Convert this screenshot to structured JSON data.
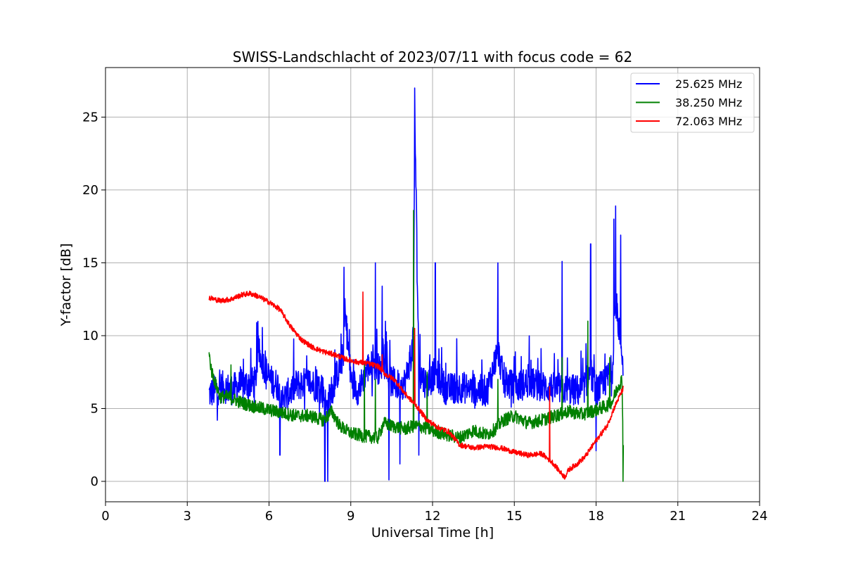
{
  "chart_data": {
    "type": "line",
    "title": "SWISS-Landschlacht of 2023/07/11 with focus code = 62",
    "xlabel": "Universal Time [h]",
    "ylabel": "Y-factor [dB]",
    "xlim": [
      0,
      24
    ],
    "ylim": [
      -1.4,
      28.4
    ],
    "xticks": [
      0,
      3,
      6,
      9,
      12,
      15,
      18,
      21,
      24
    ],
    "yticks": [
      0,
      5,
      10,
      15,
      20,
      25
    ],
    "grid": true,
    "legend_position": "top-right",
    "series": [
      {
        "name": "25.625 MHz",
        "color": "#0000ff",
        "x": [
          3.8,
          4.0,
          4.3,
          4.6,
          5.0,
          5.5,
          5.6,
          6.0,
          6.4,
          6.5,
          7.0,
          7.5,
          8.0,
          8.1,
          8.4,
          8.7,
          8.8,
          9.0,
          9.3,
          9.6,
          9.9,
          10.1,
          10.2,
          10.4,
          10.7,
          11.0,
          11.3,
          11.35,
          11.5,
          11.8,
          12.1,
          12.5,
          13.0,
          13.5,
          14.0,
          14.4,
          14.6,
          15.0,
          15.5,
          16.0,
          16.5,
          17.0,
          17.5,
          17.8,
          18.0,
          18.3,
          18.6,
          18.7,
          18.85,
          19.0
        ],
        "y": [
          6.0,
          6.2,
          6.5,
          6.3,
          6.6,
          6.8,
          9.0,
          7.0,
          6.5,
          5.6,
          6.6,
          6.8,
          6.2,
          5.0,
          6.8,
          8.5,
          11.5,
          7.0,
          6.2,
          7.8,
          8.0,
          7.5,
          9.5,
          7.0,
          6.6,
          6.8,
          9.5,
          25.0,
          7.5,
          6.6,
          7.5,
          6.3,
          6.5,
          6.3,
          6.2,
          9.0,
          7.0,
          6.4,
          6.8,
          6.5,
          6.4,
          6.3,
          6.2,
          7.5,
          6.3,
          6.6,
          7.8,
          12.0,
          10.5,
          8.0
        ],
        "spikes_max": [
          [
            4.1,
            4.2
          ],
          [
            5.55,
            10.9
          ],
          [
            8.75,
            14.7
          ],
          [
            9.9,
            15.0
          ],
          [
            10.15,
            13.4
          ],
          [
            11.35,
            27.0
          ],
          [
            12.1,
            15.0
          ],
          [
            14.4,
            15.0
          ],
          [
            16.75,
            15.1
          ],
          [
            17.8,
            16.3
          ],
          [
            18.65,
            18.0
          ],
          [
            18.72,
            18.9
          ],
          [
            18.9,
            16.9
          ]
        ],
        "spikes_min": [
          [
            4.1,
            4.2
          ],
          [
            6.4,
            1.8
          ],
          [
            8.05,
            0.0
          ],
          [
            8.15,
            0.0
          ],
          [
            10.4,
            0.1
          ],
          [
            10.8,
            1.2
          ],
          [
            11.5,
            1.8
          ],
          [
            18.0,
            2.1
          ]
        ]
      },
      {
        "name": "38.250 MHz",
        "color": "#008000",
        "x": [
          3.8,
          3.9,
          4.2,
          4.5,
          5.0,
          5.5,
          6.0,
          6.5,
          7.0,
          7.5,
          8.0,
          8.3,
          8.6,
          9.0,
          9.5,
          10.0,
          10.2,
          10.5,
          11.0,
          11.3,
          11.5,
          12.0,
          12.5,
          13.0,
          13.5,
          14.0,
          14.3,
          14.6,
          15.0,
          15.5,
          16.0,
          16.5,
          17.0,
          17.5,
          18.0,
          18.4,
          18.6,
          18.8,
          18.95,
          19.0
        ],
        "y": [
          8.7,
          7.5,
          5.8,
          5.8,
          5.4,
          5.1,
          4.9,
          4.7,
          4.5,
          4.5,
          4.2,
          4.8,
          3.8,
          3.3,
          3.1,
          3.0,
          4.0,
          3.8,
          3.6,
          3.8,
          3.8,
          3.5,
          3.2,
          3.0,
          3.5,
          3.2,
          3.6,
          4.2,
          4.5,
          4.0,
          4.2,
          4.5,
          4.8,
          4.6,
          4.9,
          5.2,
          5.5,
          6.5,
          7.0,
          2.5
        ],
        "spikes_max": [
          [
            4.6,
            8.0
          ],
          [
            9.5,
            8.0
          ],
          [
            9.9,
            7.0
          ],
          [
            11.3,
            18.6
          ],
          [
            11.8,
            7.5
          ],
          [
            14.4,
            7.0
          ],
          [
            16.75,
            8.5
          ],
          [
            17.7,
            11.0
          ],
          [
            18.5,
            8.5
          ]
        ],
        "spikes_min": [
          [
            18.99,
            0.0
          ]
        ]
      },
      {
        "name": "72.063 MHz",
        "color": "#ff0000",
        "x": [
          3.8,
          4.2,
          4.6,
          5.0,
          5.3,
          5.6,
          6.0,
          6.4,
          6.8,
          7.2,
          7.6,
          8.0,
          8.4,
          8.8,
          9.2,
          9.6,
          10.0,
          10.3,
          10.6,
          11.0,
          11.4,
          11.8,
          12.2,
          12.6,
          13.0,
          13.5,
          14.0,
          14.5,
          15.0,
          15.5,
          16.0,
          16.4,
          16.7,
          16.85,
          17.0,
          17.3,
          17.6,
          18.0,
          18.4,
          18.7,
          19.0
        ],
        "y": [
          12.6,
          12.4,
          12.5,
          12.8,
          12.9,
          12.7,
          12.3,
          11.8,
          10.6,
          9.7,
          9.2,
          8.9,
          8.7,
          8.4,
          8.2,
          8.1,
          7.9,
          7.3,
          7.0,
          6.0,
          5.2,
          4.2,
          3.7,
          3.4,
          2.5,
          2.3,
          2.4,
          2.3,
          2.0,
          1.8,
          1.9,
          1.3,
          0.6,
          0.3,
          0.8,
          1.2,
          1.7,
          2.8,
          3.8,
          5.2,
          6.4
        ],
        "spikes_max": [
          [
            9.45,
            13.0
          ],
          [
            10.15,
            8.7
          ],
          [
            11.35,
            10.5
          ],
          [
            16.3,
            6.5
          ]
        ],
        "spikes_min": []
      }
    ]
  }
}
